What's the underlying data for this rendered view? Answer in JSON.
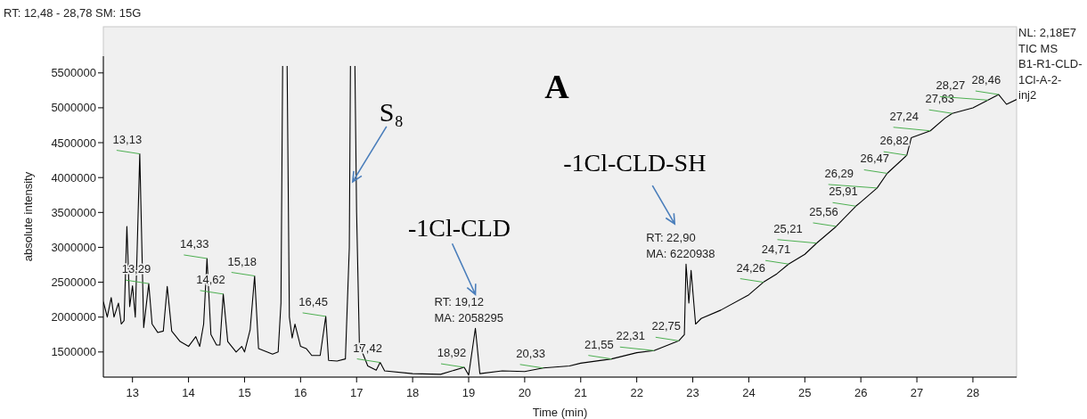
{
  "chart_data": {
    "type": "line",
    "xlabel": "Time (min)",
    "ylabel": "absolute intensity",
    "xlim": [
      12.48,
      28.78
    ],
    "ylim": [
      1140000,
      5740000
    ],
    "xticks": [
      13,
      14,
      15,
      16,
      17,
      18,
      19,
      20,
      21,
      22,
      23,
      24,
      25,
      26,
      27,
      28
    ],
    "yticks": [
      1500000,
      2000000,
      2500000,
      3000000,
      3500000,
      4000000,
      4500000,
      5000000,
      5500000
    ],
    "grid": false,
    "series": [
      {
        "color": "#000000",
        "x": [
          12.48,
          12.55,
          12.62,
          12.67,
          12.75,
          12.8,
          12.85,
          12.9,
          12.95,
          13.0,
          13.05,
          13.13,
          13.2,
          13.29,
          13.35,
          13.45,
          13.55,
          13.62,
          13.7,
          13.85,
          14.0,
          14.13,
          14.2,
          14.27,
          14.33,
          14.4,
          14.5,
          14.56,
          14.62,
          14.7,
          14.85,
          14.95,
          15.0,
          15.1,
          15.18,
          15.25,
          15.5,
          15.6,
          15.65,
          15.68,
          15.72,
          15.76,
          15.8,
          15.85,
          15.9,
          16.0,
          16.1,
          16.2,
          16.35,
          16.45,
          16.5,
          16.65,
          16.8,
          16.87,
          16.89,
          16.93,
          16.97,
          17.0,
          17.05,
          17.2,
          17.35,
          17.42,
          17.5,
          18.0,
          18.5,
          18.92,
          19.0,
          19.12,
          19.2,
          19.6,
          20.0,
          20.33,
          20.8,
          21.0,
          21.55,
          22.0,
          22.31,
          22.75,
          22.85,
          22.88,
          22.93,
          22.97,
          23.05,
          23.15,
          23.5,
          24.0,
          24.26,
          24.5,
          24.71,
          25.0,
          25.21,
          25.56,
          25.91,
          26.0,
          26.29,
          26.47,
          26.82,
          26.9,
          27.24,
          27.5,
          27.63,
          28.0,
          28.27,
          28.46,
          28.6,
          28.78
        ],
        "values": [
          2220000,
          2000000,
          2280000,
          2000000,
          2200000,
          1900000,
          1950000,
          3300000,
          2150000,
          2450000,
          2000000,
          4340000,
          1850000,
          2480000,
          1900000,
          1780000,
          1800000,
          2440000,
          1800000,
          1650000,
          1580000,
          1720000,
          1580000,
          1900000,
          2840000,
          1750000,
          1600000,
          1600000,
          2330000,
          1650000,
          1500000,
          1580000,
          1500000,
          1820000,
          2590000,
          1550000,
          1470000,
          1500000,
          2200000,
          5600000,
          null,
          5600000,
          2000000,
          1700000,
          1900000,
          1580000,
          1550000,
          1450000,
          1450000,
          2010000,
          1380000,
          1370000,
          1400000,
          3000000,
          5600000,
          null,
          5600000,
          3500000,
          1600000,
          1300000,
          1240000,
          1350000,
          1230000,
          1190000,
          1180000,
          1280000,
          1170000,
          1840000,
          1190000,
          1230000,
          1220000,
          1270000,
          1300000,
          1340000,
          1400000,
          1490000,
          1520000,
          1660000,
          1750000,
          2760000,
          2200000,
          2670000,
          1900000,
          1980000,
          2100000,
          2320000,
          2500000,
          2620000,
          2760000,
          2900000,
          3060000,
          3300000,
          3590000,
          3650000,
          3850000,
          4060000,
          4320000,
          4570000,
          4670000,
          4850000,
          4920000,
          5000000,
          5110000,
          5190000,
          5050000,
          5120000
        ]
      }
    ],
    "annotations": [
      "RT: 12,48 - 28,78   SM: 15G",
      "NL: 2,18E7 TIC  MS B1-R1-CLD-1Cl-A-2-inj2",
      "A",
      {
        "text": "S₈",
        "x": 16.93,
        "y": 3940000
      },
      "-1Cl-CLD",
      "-1Cl-CLD-SH",
      {
        "text": "RT: 19,12",
        "x": 19.12,
        "y": 1840000
      },
      {
        "text": "MA: 2058295",
        "x": 19.12,
        "y": 1840000
      },
      {
        "text": "RT: 22,90",
        "x": 22.9,
        "y": 2760000
      },
      {
        "text": "MA: 6220938",
        "x": 22.9,
        "y": 2760000
      },
      {
        "text": "13,13",
        "x": 13.13,
        "y": 4340000
      },
      {
        "text": "13,29",
        "x": 13.29,
        "y": 2480000
      },
      {
        "text": "14,33",
        "x": 14.33,
        "y": 2840000
      },
      {
        "text": "14,62",
        "x": 14.62,
        "y": 2330000
      },
      {
        "text": "15,18",
        "x": 15.18,
        "y": 2590000
      },
      {
        "text": "16,45",
        "x": 16.45,
        "y": 2010000
      },
      {
        "text": "17,42",
        "x": 17.42,
        "y": 1350000
      },
      {
        "text": "18,92",
        "x": 18.92,
        "y": 1280000
      },
      {
        "text": "20,33",
        "x": 20.33,
        "y": 1270000
      },
      {
        "text": "21,55",
        "x": 21.55,
        "y": 1400000
      },
      {
        "text": "22,31",
        "x": 22.31,
        "y": 1520000
      },
      {
        "text": "22,75",
        "x": 22.75,
        "y": 1660000
      },
      {
        "text": "24,26",
        "x": 24.26,
        "y": 2500000
      },
      {
        "text": "24,71",
        "x": 24.71,
        "y": 2760000
      },
      {
        "text": "25,21",
        "x": 25.21,
        "y": 3060000
      },
      {
        "text": "25,56",
        "x": 25.56,
        "y": 3300000
      },
      {
        "text": "25,91",
        "x": 25.91,
        "y": 3590000
      },
      {
        "text": "26,29",
        "x": 26.29,
        "y": 3850000
      },
      {
        "text": "26,47",
        "x": 26.47,
        "y": 4060000
      },
      {
        "text": "26,82",
        "x": 26.82,
        "y": 4320000
      },
      {
        "text": "27,24",
        "x": 27.24,
        "y": 4670000
      },
      {
        "text": "27,63",
        "x": 27.63,
        "y": 4920000
      },
      {
        "text": "28,27",
        "x": 28.27,
        "y": 5110000
      },
      {
        "text": "28,46",
        "x": 28.46,
        "y": 5190000
      }
    ]
  }
}
